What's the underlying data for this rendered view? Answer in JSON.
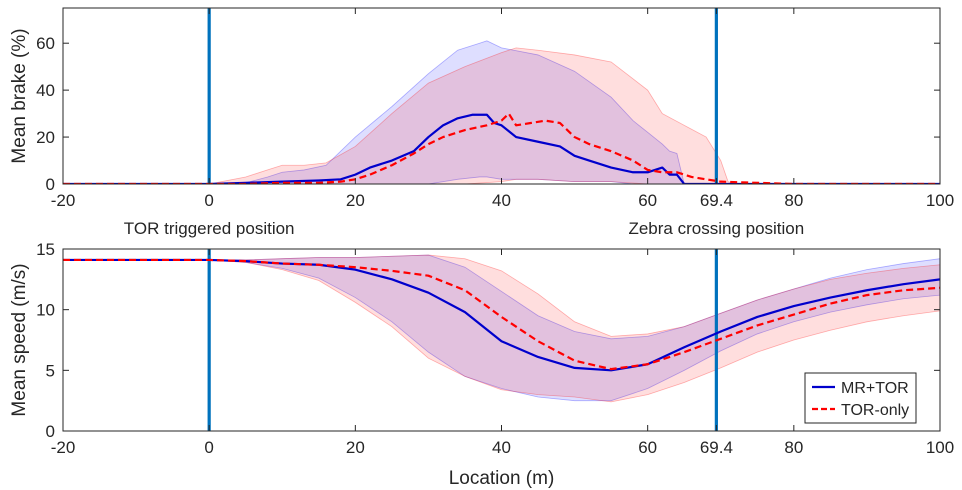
{
  "chart_data": [
    {
      "type": "line",
      "ylabel": "Mean brake (%)",
      "xlim": [
        -20,
        100
      ],
      "ylim": [
        0,
        75
      ],
      "x_ticks": [
        -20,
        0,
        20,
        40,
        60,
        69.4,
        80,
        100
      ],
      "x_tick_labels": [
        "-20",
        "0",
        "20",
        "40",
        "60",
        "69.4",
        "80",
        "100"
      ],
      "y_ticks": [
        0,
        20,
        40,
        60
      ],
      "y_tick_labels": [
        "0",
        "20",
        "40",
        "60"
      ],
      "vlines": [
        0,
        69.4
      ],
      "annotations": [
        {
          "text": "TOR triggered position",
          "x": 0
        },
        {
          "text": "Zebra crossing position",
          "x": 69.4
        }
      ],
      "series": [
        {
          "style": "solid",
          "color": "#0000CC",
          "x": [
            -20,
            -10,
            0,
            5,
            10,
            15,
            18,
            20,
            22,
            25,
            28,
            30,
            32,
            34,
            36,
            38,
            39,
            40,
            42,
            45,
            48,
            50,
            52,
            55,
            58,
            60,
            62,
            63,
            64,
            65,
            67,
            70,
            80,
            100
          ],
          "y": [
            0,
            0,
            0,
            0.5,
            1,
            1.5,
            2,
            4,
            7,
            10,
            14,
            20,
            25,
            28,
            29.5,
            29.5,
            26,
            25,
            20,
            18,
            16,
            12,
            10,
            7,
            5,
            5,
            7,
            4,
            4,
            0,
            0,
            0,
            0,
            0
          ]
        },
        {
          "style": "dashed",
          "color": "#FF0000",
          "x": [
            -20,
            0,
            5,
            10,
            15,
            18,
            20,
            22,
            25,
            28,
            30,
            32,
            35,
            38,
            40,
            41,
            42,
            44,
            46,
            48,
            50,
            52,
            55,
            58,
            60,
            62,
            64,
            66,
            68,
            70,
            80,
            100
          ],
          "y": [
            0,
            0,
            0,
            0.5,
            0.5,
            1,
            2,
            4,
            8,
            13,
            17,
            20,
            23,
            25,
            27,
            30,
            25,
            26,
            27,
            26,
            20,
            17,
            14,
            10,
            6,
            5,
            5,
            3,
            2,
            1,
            0,
            0
          ]
        }
      ],
      "bands": [
        {
          "color": "#0000FF",
          "x": [
            -20,
            0,
            5,
            8,
            10,
            13,
            16,
            20,
            25,
            30,
            34,
            37,
            38,
            40,
            45,
            50,
            55,
            58,
            60,
            62,
            63,
            64,
            65,
            66,
            67,
            70,
            100
          ],
          "upper": [
            0,
            0,
            0.5,
            3,
            5,
            6,
            8,
            20,
            33,
            47,
            57,
            60,
            61,
            58,
            55,
            48,
            37,
            27,
            22,
            17,
            14,
            13,
            0,
            0,
            0,
            0,
            0
          ],
          "lower": [
            0,
            0,
            0,
            0,
            0,
            0,
            0,
            0,
            0,
            0,
            2,
            3,
            3,
            2,
            2,
            1,
            1,
            0,
            0,
            0,
            0,
            0,
            0,
            0,
            0,
            0,
            0
          ]
        },
        {
          "color": "#FF0000",
          "x": [
            -20,
            0,
            5,
            8,
            10,
            13,
            16,
            20,
            25,
            30,
            35,
            40,
            42,
            45,
            50,
            55,
            60,
            62,
            65,
            68,
            70,
            71,
            72,
            100
          ],
          "upper": [
            0,
            0,
            3,
            6,
            8,
            8,
            9,
            16,
            30,
            43,
            50,
            56,
            58,
            57,
            55,
            52,
            40,
            30,
            25,
            20,
            10,
            1,
            0,
            0
          ],
          "lower": [
            0,
            0,
            0,
            0,
            0,
            0,
            0,
            0,
            0,
            0,
            0,
            1,
            2,
            2,
            1,
            1,
            0,
            0,
            0,
            0,
            0,
            0,
            0,
            0
          ]
        }
      ]
    },
    {
      "type": "line",
      "xlabel": "Location (m)",
      "ylabel": "Mean speed (m/s)",
      "xlim": [
        -20,
        100
      ],
      "ylim": [
        0,
        15
      ],
      "x_ticks": [
        -20,
        0,
        20,
        40,
        60,
        69.4,
        80,
        100
      ],
      "x_tick_labels": [
        "-20",
        "0",
        "20",
        "40",
        "60",
        "69.4",
        "80",
        "100"
      ],
      "y_ticks": [
        0,
        5,
        10,
        15
      ],
      "y_tick_labels": [
        "0",
        "5",
        "10",
        "15"
      ],
      "vlines": [
        0,
        69.4
      ],
      "legend": {
        "position": "bottom-right",
        "entries": [
          "MR+TOR",
          "TOR-only"
        ]
      },
      "series": [
        {
          "name": "MR+TOR",
          "style": "solid",
          "color": "#0000CC",
          "x": [
            -20,
            0,
            5,
            10,
            15,
            20,
            25,
            30,
            35,
            40,
            45,
            50,
            55,
            60,
            65,
            70,
            75,
            80,
            85,
            90,
            95,
            100
          ],
          "y": [
            14.1,
            14.1,
            14,
            13.8,
            13.7,
            13.3,
            12.5,
            11.4,
            9.8,
            7.4,
            6.1,
            5.2,
            5.0,
            5.5,
            6.9,
            8.2,
            9.4,
            10.3,
            11.0,
            11.6,
            12.1,
            12.5
          ]
        },
        {
          "name": "TOR-only",
          "style": "dashed",
          "color": "#FF0000",
          "x": [
            -20,
            0,
            5,
            10,
            15,
            20,
            25,
            30,
            35,
            40,
            45,
            50,
            55,
            60,
            65,
            70,
            75,
            80,
            85,
            90,
            95,
            100
          ],
          "y": [
            14.1,
            14.1,
            14,
            13.8,
            13.7,
            13.5,
            13.2,
            12.8,
            11.6,
            9.4,
            7.4,
            5.8,
            5.1,
            5.5,
            6.5,
            7.6,
            8.7,
            9.6,
            10.5,
            11.2,
            11.6,
            11.8
          ]
        }
      ],
      "bands": [
        {
          "color": "#0000FF",
          "x": [
            -20,
            0,
            5,
            10,
            15,
            20,
            25,
            30,
            35,
            40,
            45,
            50,
            55,
            60,
            65,
            70,
            75,
            80,
            85,
            90,
            95,
            100
          ],
          "upper": [
            14.1,
            14.1,
            14.1,
            14.2,
            14.3,
            14.3,
            14.4,
            14.5,
            13.5,
            11.5,
            9.5,
            8.2,
            7.6,
            7.8,
            8.6,
            9.7,
            10.8,
            11.7,
            12.6,
            13.3,
            13.8,
            14.2
          ],
          "lower": [
            14.1,
            14.1,
            13.9,
            13.4,
            12.6,
            11.0,
            9.0,
            6.5,
            4.5,
            3.5,
            2.8,
            2.5,
            2.5,
            3.5,
            5.0,
            6.6,
            8.0,
            9.0,
            9.8,
            10.4,
            10.9,
            11.2
          ]
        },
        {
          "color": "#FF0000",
          "x": [
            -20,
            0,
            5,
            10,
            15,
            20,
            25,
            30,
            35,
            40,
            45,
            50,
            55,
            60,
            65,
            70,
            75,
            80,
            85,
            90,
            95,
            100
          ],
          "upper": [
            14.1,
            14.1,
            14.1,
            14.2,
            14.3,
            14.3,
            14.4,
            14.5,
            14.2,
            13.2,
            11.3,
            9.0,
            7.8,
            8.0,
            8.6,
            9.7,
            10.8,
            11.7,
            12.5,
            13.0,
            13.4,
            13.7
          ],
          "lower": [
            14.1,
            14.1,
            13.9,
            13.3,
            12.4,
            10.6,
            8.6,
            6.0,
            4.5,
            3.4,
            3.0,
            2.8,
            2.4,
            3.0,
            4.0,
            5.2,
            6.5,
            7.5,
            8.3,
            9.0,
            9.5,
            9.9
          ]
        }
      ]
    }
  ]
}
